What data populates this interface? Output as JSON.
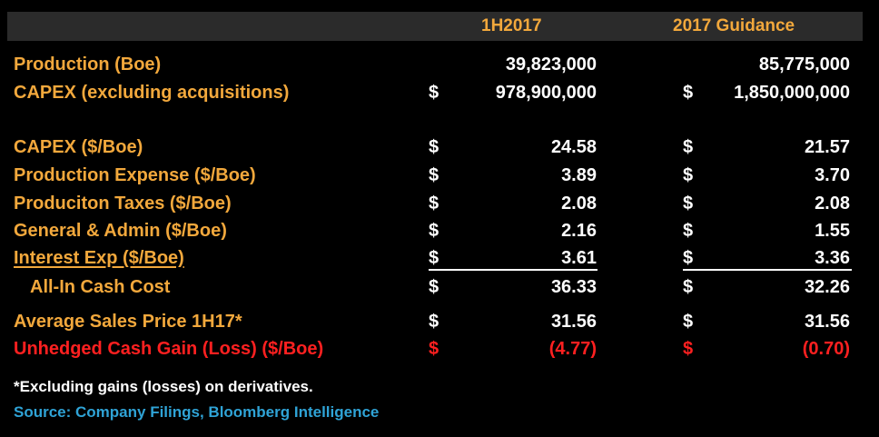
{
  "chart_data": {
    "type": "table",
    "columns": [
      "",
      "1H2017",
      "2017 Guidance"
    ],
    "rows": [
      {
        "label": "Production (Boe)",
        "cur1": "",
        "v1": "39,823,000",
        "cur2": "",
        "v2": "85,775,000"
      },
      {
        "label": "CAPEX (excluding acquisitions)",
        "cur1": "$",
        "v1": "978,900,000",
        "cur2": "$",
        "v2": "1,850,000,000"
      },
      {
        "label": "CAPEX ($/Boe)",
        "cur1": "$",
        "v1": "24.58",
        "cur2": "$",
        "v2": "21.57"
      },
      {
        "label": "Production Expense ($/Boe)",
        "cur1": "$",
        "v1": "3.89",
        "cur2": "$",
        "v2": "3.70"
      },
      {
        "label": "Produciton Taxes ($/Boe)",
        "cur1": "$",
        "v1": "2.08",
        "cur2": "$",
        "v2": "2.08"
      },
      {
        "label": "General & Admin ($/Boe)",
        "cur1": "$",
        "v1": "2.16",
        "cur2": "$",
        "v2": "1.55"
      },
      {
        "label": "Interest Exp ($/Boe)",
        "cur1": "$",
        "v1": "3.61",
        "cur2": "$",
        "v2": "3.36"
      },
      {
        "label": "All-In Cash Cost",
        "cur1": "$",
        "v1": "36.33",
        "cur2": "$",
        "v2": "32.26"
      },
      {
        "label": "Average Sales Price 1H17*",
        "cur1": "$",
        "v1": "31.56",
        "cur2": "$",
        "v2": "31.56"
      },
      {
        "label": "Unhedged Cash Gain (Loss) ($/Boe)",
        "cur1": "$",
        "v1": "(4.77)",
        "cur2": "$",
        "v2": "(0.70)"
      }
    ],
    "footnote": "*Excluding gains (losses) on derivatives.",
    "source": "Source: Company Filings, Bloomberg Intelligence"
  },
  "colors": {
    "background": "#000000",
    "header_bar": "#2b2b2b",
    "label": "#f2a83c",
    "value": "#ffffff",
    "negative": "#ff2020",
    "source": "#2fa3d6"
  }
}
